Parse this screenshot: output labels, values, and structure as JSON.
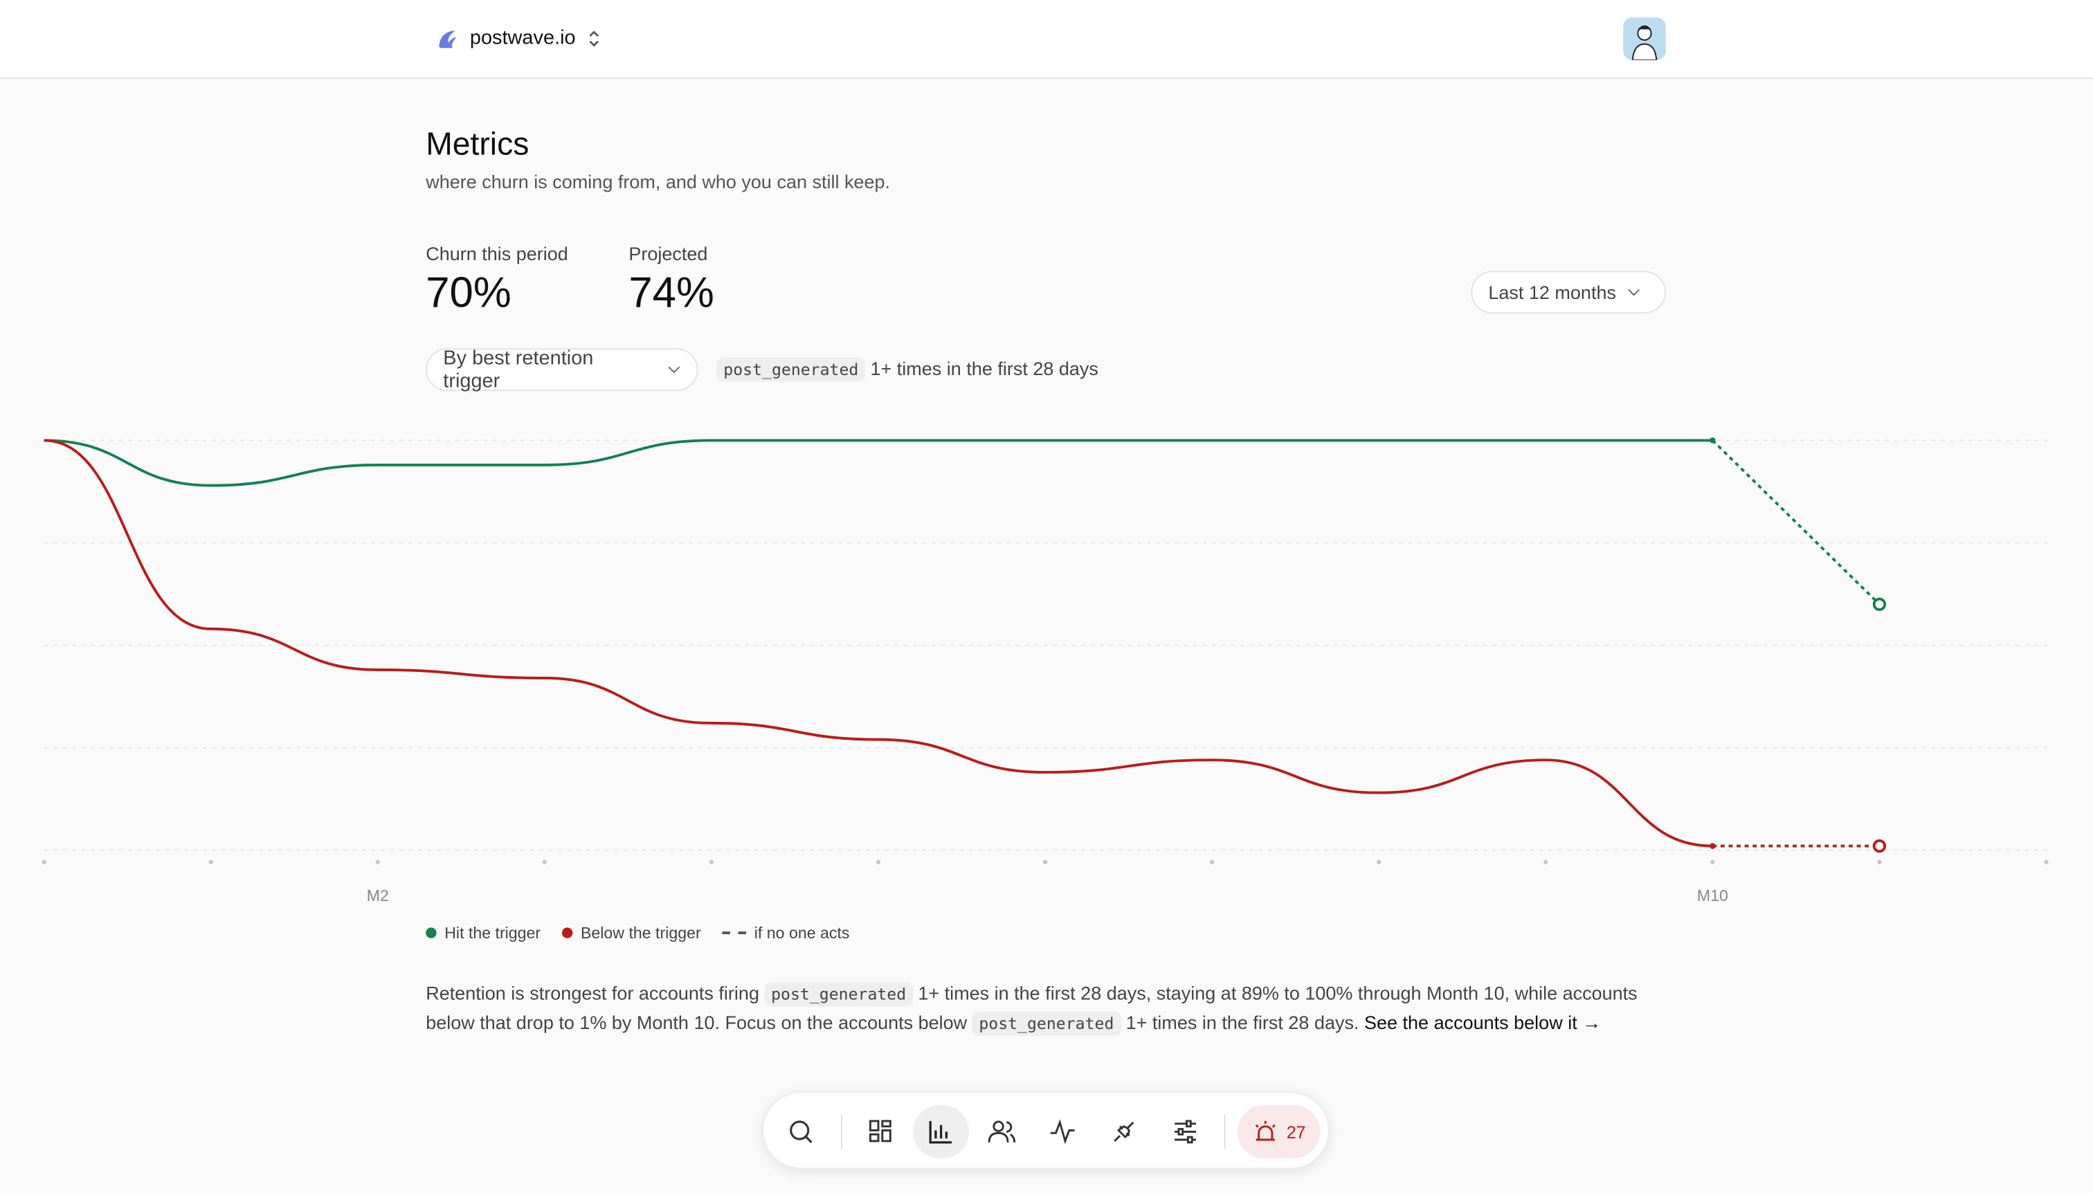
{
  "header": {
    "workspace": "postwave.io"
  },
  "page": {
    "title": "Metrics",
    "subtitle": "where churn is coming from, and who you can still keep."
  },
  "metrics": [
    {
      "label": "Churn this period",
      "value": "70%"
    },
    {
      "label": "Projected",
      "value": "74%"
    }
  ],
  "filters": {
    "range": "Last 12 months",
    "group": "By best retention trigger",
    "event": "post_generated",
    "condition": "1+ times in the first 28 days"
  },
  "chart_data": {
    "type": "line",
    "categories": [
      null,
      null,
      "M2",
      null,
      null,
      null,
      null,
      null,
      null,
      null,
      "M10",
      null,
      null
    ],
    "ylim": [
      0,
      100
    ],
    "yticks": [
      0,
      25,
      50,
      75,
      100
    ],
    "grid": true,
    "projection_label": "if no one acts",
    "series": [
      {
        "name": "Hit the trigger",
        "color": "#16804f",
        "values": [
          100,
          89,
          94,
          94,
          100,
          100,
          100,
          100,
          100,
          100,
          100,
          null,
          null
        ],
        "projected_values": [
          null,
          null,
          null,
          null,
          null,
          null,
          null,
          null,
          null,
          null,
          null,
          60,
          null
        ]
      },
      {
        "name": "Below the trigger",
        "color": "#b91c1c",
        "values": [
          100,
          54,
          44,
          42,
          31,
          27,
          19,
          22,
          14,
          22,
          1,
          null,
          null
        ],
        "projected_values": [
          null,
          null,
          null,
          null,
          null,
          null,
          null,
          null,
          null,
          null,
          null,
          1,
          null
        ]
      }
    ]
  },
  "summary": {
    "segments": [
      "Retention is strongest for accounts firing ",
      "post_generated",
      " 1+ times in the first 28 days, staying at 89% to 100% through Month 10, while accounts below that drop to 1% by Month 10. Focus on the accounts below ",
      "post_generated",
      " 1+ times in the first 28 days. "
    ],
    "link": "See the accounts below it →"
  },
  "nav": {
    "alerts": 27
  }
}
